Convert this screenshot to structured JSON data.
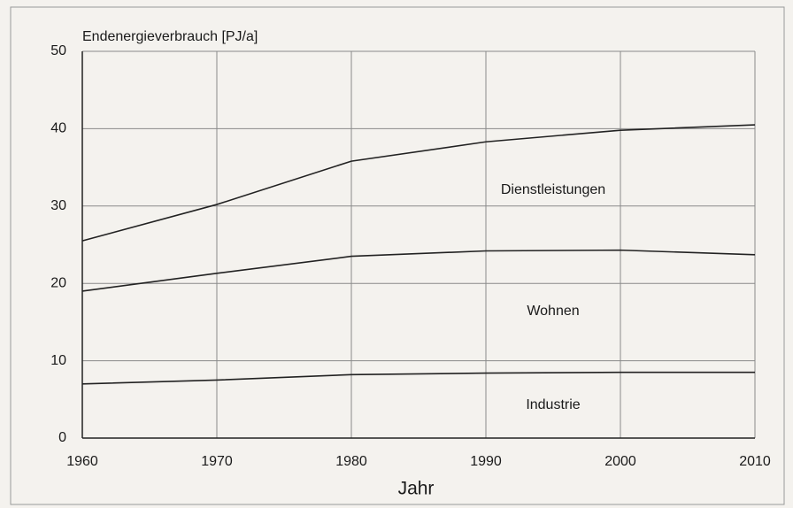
{
  "chart_data": {
    "type": "line",
    "stacked": true,
    "ylabel": "Endenergieverbrauch [PJ/a]",
    "xlabel": "Jahr",
    "x": [
      1960,
      1970,
      1980,
      1990,
      2000,
      2010
    ],
    "series": [
      {
        "name": "Industrie",
        "color": "#222222",
        "values": [
          7,
          7.5,
          8.2,
          8.4,
          8.5,
          8.5
        ]
      },
      {
        "name": "Wohnen",
        "color": "#222222",
        "values": [
          12,
          13.8,
          15.3,
          15.8,
          15.8,
          15.2
        ]
      },
      {
        "name": "Dienstleistungen",
        "color": "#222222",
        "values": [
          6.5,
          8.9,
          12.3,
          14.1,
          15.5,
          16.8
        ]
      }
    ],
    "xlim": [
      1960,
      2010
    ],
    "xticks": [
      1960,
      1970,
      1980,
      1990,
      2000,
      2010
    ],
    "ylim": [
      0,
      50
    ],
    "yticks": [
      0,
      10,
      20,
      30,
      40,
      50
    ],
    "grid": true
  }
}
